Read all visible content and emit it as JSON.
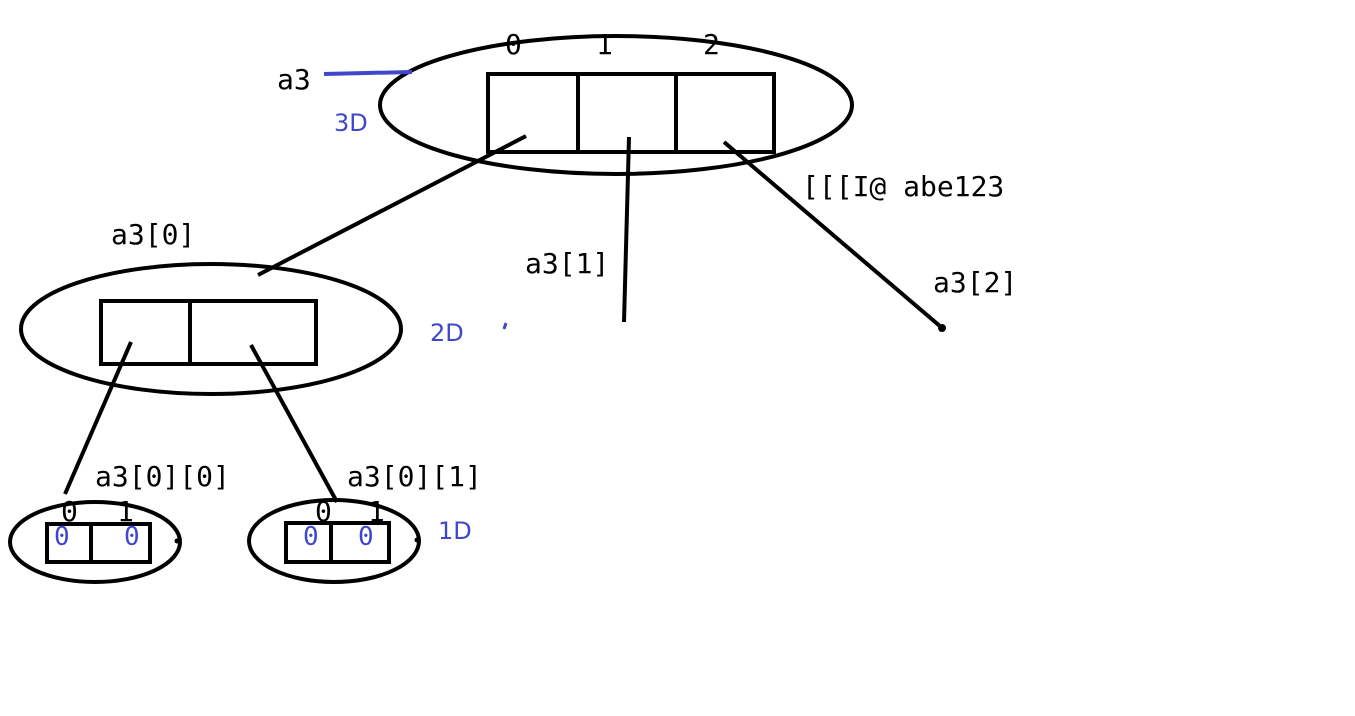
{
  "colors": {
    "ink": "#000000",
    "accent": "#3f48cc"
  },
  "root": {
    "name": "a3",
    "dim_label": "3D",
    "indices": [
      "0",
      "1",
      "2"
    ],
    "address": "[[[I@ abe123"
  },
  "level2": {
    "labels": [
      "a3[0]",
      "a3[1]",
      "a3[2]"
    ],
    "dim_label": "2D"
  },
  "level1": {
    "labels": [
      "a3[0][0]",
      "a3[0][1]"
    ],
    "dim_label": "1D",
    "indices": [
      "0",
      "1"
    ],
    "values": [
      "0",
      "0"
    ]
  }
}
